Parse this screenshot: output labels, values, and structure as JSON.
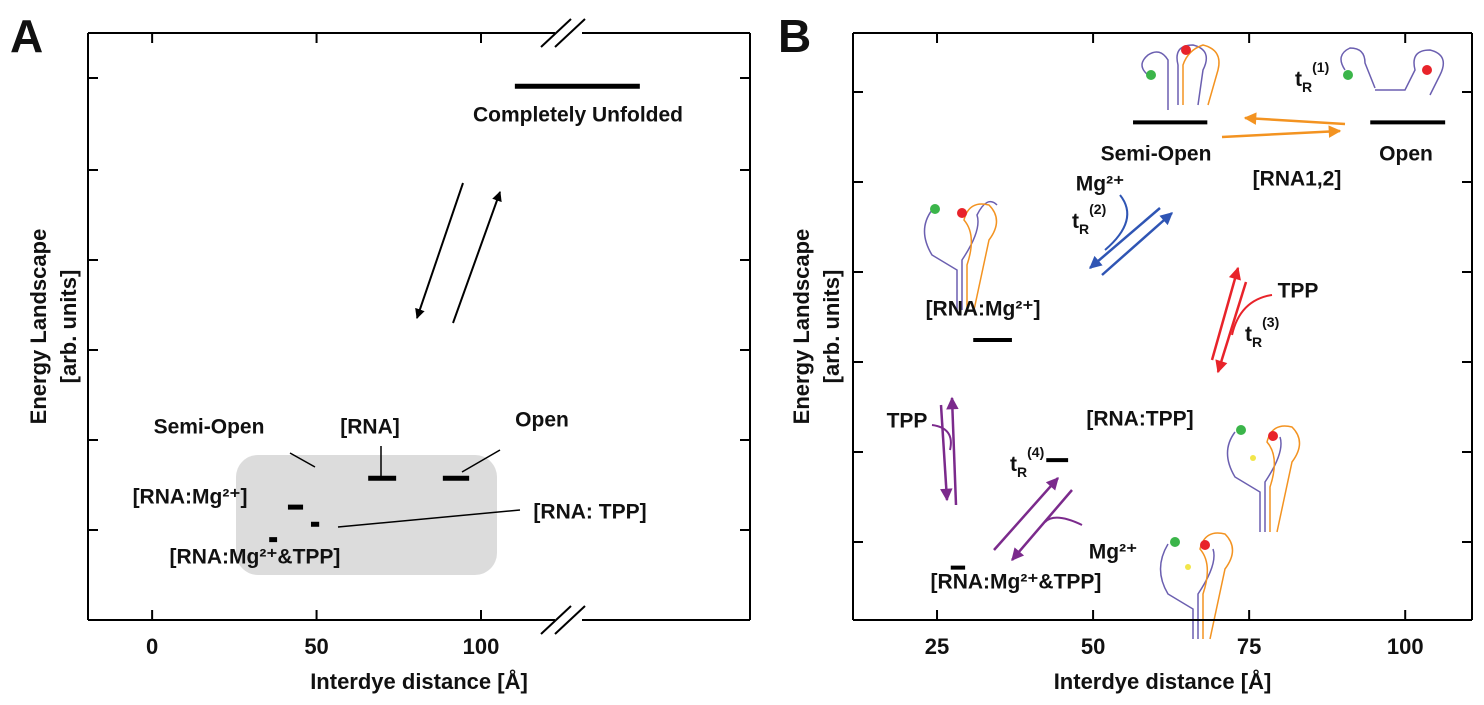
{
  "chart_data": [
    {
      "type": "energy-levels",
      "panel": "A",
      "xlabel": "Interdye distance [Å]",
      "ylabel": [
        "Energy Landscape",
        "[arb. units]"
      ],
      "xlim": [
        -19.5,
        181.8
      ],
      "xticks": [
        0,
        50,
        100
      ],
      "ylim": [
        0,
        6.5
      ],
      "levels": {
        "x_start": [
          110.3,
          65.7,
          88.4,
          41.3,
          48.3,
          35.6
        ],
        "x_end": [
          148.3,
          74.2,
          96.4,
          45.9,
          50.8,
          38.0
        ],
        "values": [
          5.91,
          1.57,
          1.57,
          1.25,
          1.06,
          0.89
        ]
      },
      "annotations": [
        "Completely Unfolded",
        "Semi-Open",
        "[RNA]",
        "Open",
        "[RNA:Mg²⁺]",
        "[RNA: TPP]",
        "[RNA:Mg²⁺&TPP]"
      ]
    },
    {
      "type": "energy-levels",
      "panel": "B",
      "xlabel": "Interdye distance [Å]",
      "ylabel": [
        "Energy Landscape",
        "[arb. units]"
      ],
      "xlim": [
        11.54,
        110.7
      ],
      "xticks": [
        25,
        50,
        75,
        100
      ],
      "ylim": [
        0,
        6.5
      ],
      "levels": {
        "x_start": [
          56.4,
          94.4,
          30.8,
          42.5,
          27.2
        ],
        "x_end": [
          68.3,
          106.4,
          37.0,
          46.0,
          29.5
        ],
        "values": [
          5.51,
          5.51,
          3.1,
          1.77,
          0.58
        ]
      },
      "annotations": [
        "Semi-Open",
        "Open",
        "[RNA1,2]",
        "Mg²⁺",
        "TPP",
        "[RNA:Mg²⁺]",
        "[RNA:TPP]",
        "TPP",
        "Mg²⁺",
        "[RNA:Mg²⁺&TPP]"
      ],
      "rates": [
        {
          "base": "t",
          "sub": "R",
          "sup": "(1)"
        },
        {
          "base": "t",
          "sub": "R",
          "sup": "(2)"
        },
        {
          "base": "t",
          "sub": "R",
          "sup": "(3)"
        },
        {
          "base": "t",
          "sub": "R",
          "sup": "(4)"
        }
      ]
    }
  ]
}
